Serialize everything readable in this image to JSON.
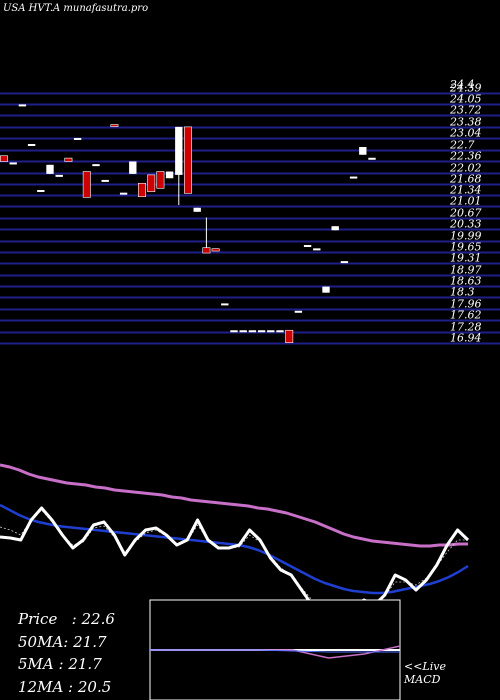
{
  "header": {
    "title": "USA HVT.A munafasutra.pro"
  },
  "legend": {
    "price_label": "Price",
    "price_value": "22.6",
    "ma50_label": "50MA",
    "ma50_value": "21.7",
    "ma5_label": "5MA",
    "ma5_value": "21.7",
    "ma12_label": "12MA",
    "ma12_value": "20.5"
  },
  "macd": {
    "live_label": "<<Live",
    "macd_label": "MACD"
  },
  "colors": {
    "background": "#000000",
    "grid": "#1f1f8c",
    "up_candle": "#ffffff",
    "down_candle": "#cc0000",
    "ma_slow": "#c86fc8",
    "ma_mid": "#1f3fd0",
    "price_line": "#ffffff"
  },
  "chart_data": {
    "type": "candlestick",
    "y_ticks": [
      "24.39",
      "24.05",
      "23.72",
      "23.38",
      "23.04",
      "22.7",
      "22.36",
      "22.02",
      "21.68",
      "21.34",
      "21.01",
      "20.67",
      "20.33",
      "19.99",
      "19.65",
      "19.31",
      "18.97",
      "18.63",
      "18.3",
      "17.96",
      "17.62",
      "17.28",
      "16.94"
    ],
    "y_tick_top_label": "24.4",
    "ylim": [
      16.94,
      24.39
    ],
    "candles": [
      {
        "o": 22.52,
        "c": 22.35,
        "h": 22.52,
        "l": 22.35,
        "dir": "down-flat"
      },
      {
        "o": 22.32,
        "c": 22.32,
        "h": 22.32,
        "l": 22.32,
        "dir": "up"
      },
      {
        "o": 24.05,
        "c": 24.05,
        "h": 24.05,
        "l": 24.05,
        "dir": "up"
      },
      {
        "o": 22.87,
        "c": 22.87,
        "h": 22.87,
        "l": 22.87,
        "dir": "up"
      },
      {
        "o": 21.5,
        "c": 21.5,
        "h": 21.5,
        "l": 21.5,
        "dir": "up"
      },
      {
        "o": 22.25,
        "c": 21.98,
        "h": 22.25,
        "l": 21.98,
        "dir": "up"
      },
      {
        "o": 21.95,
        "c": 21.95,
        "h": 21.95,
        "l": 21.95,
        "dir": "up"
      },
      {
        "o": 22.45,
        "c": 22.35,
        "h": 22.45,
        "l": 22.35,
        "dir": "down"
      },
      {
        "o": 23.05,
        "c": 23.05,
        "h": 23.05,
        "l": 23.05,
        "dir": "up"
      },
      {
        "o": 22.05,
        "c": 21.28,
        "h": 22.05,
        "l": 21.28,
        "dir": "down"
      },
      {
        "o": 22.27,
        "c": 22.27,
        "h": 22.27,
        "l": 22.27,
        "dir": "up"
      },
      {
        "o": 21.8,
        "c": 21.8,
        "h": 21.8,
        "l": 21.8,
        "dir": "up"
      },
      {
        "o": 23.45,
        "c": 23.4,
        "h": 23.45,
        "l": 23.4,
        "dir": "down"
      },
      {
        "o": 21.42,
        "c": 21.42,
        "h": 21.42,
        "l": 21.42,
        "dir": "up"
      },
      {
        "o": 21.98,
        "c": 22.35,
        "h": 22.35,
        "l": 21.98,
        "dir": "up"
      },
      {
        "o": 21.7,
        "c": 21.3,
        "h": 21.7,
        "l": 21.3,
        "dir": "down"
      },
      {
        "o": 21.95,
        "c": 21.45,
        "h": 21.95,
        "l": 21.45,
        "dir": "down"
      },
      {
        "o": 22.05,
        "c": 21.55,
        "h": 22.05,
        "l": 21.55,
        "dir": "down"
      },
      {
        "o": 21.85,
        "c": 22.05,
        "h": 22.05,
        "l": 21.85,
        "dir": "up"
      },
      {
        "o": 21.95,
        "c": 23.38,
        "h": 23.38,
        "l": 21.05,
        "dir": "up"
      },
      {
        "o": 23.38,
        "c": 21.4,
        "h": 23.38,
        "l": 21.4,
        "dir": "down"
      },
      {
        "o": 20.85,
        "c": 20.97,
        "h": 20.97,
        "l": 20.85,
        "dir": "up"
      },
      {
        "o": 19.78,
        "c": 19.62,
        "h": 20.68,
        "l": 19.62,
        "dir": "down"
      },
      {
        "o": 19.75,
        "c": 19.68,
        "h": 19.75,
        "l": 19.68,
        "dir": "down"
      },
      {
        "o": 18.12,
        "c": 18.12,
        "h": 18.12,
        "l": 18.12,
        "dir": "up"
      },
      {
        "o": 17.32,
        "c": 17.32,
        "h": 17.32,
        "l": 17.32,
        "dir": "up"
      },
      {
        "o": 17.32,
        "c": 17.32,
        "h": 17.32,
        "l": 17.32,
        "dir": "up"
      },
      {
        "o": 17.32,
        "c": 17.32,
        "h": 17.32,
        "l": 17.32,
        "dir": "up"
      },
      {
        "o": 17.32,
        "c": 17.32,
        "h": 17.32,
        "l": 17.32,
        "dir": "up"
      },
      {
        "o": 17.32,
        "c": 17.32,
        "h": 17.32,
        "l": 17.32,
        "dir": "up"
      },
      {
        "o": 17.32,
        "c": 17.32,
        "h": 17.32,
        "l": 17.32,
        "dir": "up"
      },
      {
        "o": 17.32,
        "c": 16.95,
        "h": 17.32,
        "l": 16.95,
        "dir": "down"
      },
      {
        "o": 17.9,
        "c": 17.9,
        "h": 17.9,
        "l": 17.9,
        "dir": "up"
      },
      {
        "o": 19.86,
        "c": 19.86,
        "h": 19.86,
        "l": 19.86,
        "dir": "up"
      },
      {
        "o": 19.76,
        "c": 19.76,
        "h": 19.76,
        "l": 19.76,
        "dir": "up"
      },
      {
        "o": 18.44,
        "c": 18.62,
        "h": 18.62,
        "l": 18.44,
        "dir": "up"
      },
      {
        "o": 20.3,
        "c": 20.42,
        "h": 20.42,
        "l": 20.3,
        "dir": "up"
      },
      {
        "o": 19.38,
        "c": 19.38,
        "h": 19.38,
        "l": 19.38,
        "dir": "up"
      },
      {
        "o": 21.9,
        "c": 21.9,
        "h": 21.9,
        "l": 21.9,
        "dir": "up"
      },
      {
        "o": 22.55,
        "c": 22.78,
        "h": 22.78,
        "l": 22.55,
        "dir": "up"
      },
      {
        "o": 22.46,
        "c": 22.46,
        "h": 22.46,
        "l": 22.46,
        "dir": "up"
      }
    ],
    "indicator_lines": {
      "ma_slow": [
        465,
        467,
        470,
        474,
        477,
        479,
        481,
        483,
        484,
        485,
        487,
        488,
        490,
        491,
        492,
        493,
        494,
        495,
        497,
        498,
        500,
        501,
        502,
        503,
        504,
        505,
        506,
        508,
        509,
        511,
        513,
        516,
        519,
        522,
        526,
        530,
        534,
        537,
        539,
        541,
        542,
        543,
        544,
        545,
        546,
        546,
        545,
        545,
        544,
        544
      ],
      "ma_mid": [
        505,
        510,
        515,
        519,
        522,
        524,
        526,
        527,
        528,
        529,
        530,
        531,
        532,
        533,
        534,
        535,
        536,
        537,
        538,
        539,
        540,
        541,
        542,
        543,
        544,
        545,
        547,
        550,
        554,
        559,
        564,
        569,
        574,
        579,
        583,
        586,
        589,
        591,
        592,
        593,
        593,
        592,
        590,
        588,
        586,
        584,
        581,
        577,
        572,
        566
      ],
      "price": [
        537,
        538,
        540,
        520,
        508,
        520,
        535,
        548,
        540,
        525,
        522,
        535,
        555,
        540,
        530,
        528,
        535,
        545,
        540,
        520,
        540,
        548,
        548,
        545,
        530,
        540,
        558,
        570,
        575,
        590,
        605,
        610,
        610,
        610,
        608,
        600,
        605,
        595,
        575,
        580,
        590,
        580,
        565,
        545,
        530,
        540
      ],
      "signal": [
        527,
        530,
        535,
        520,
        510,
        522,
        535,
        545,
        542,
        528,
        526,
        537,
        552,
        542,
        533,
        530,
        536,
        545,
        541,
        525,
        540,
        547,
        548,
        547,
        535,
        542,
        556,
        568,
        575,
        588,
        600,
        606,
        608,
        609,
        607,
        601,
        603,
        596,
        582,
        582,
        585,
        578,
        566,
        552,
        540,
        540
      ]
    },
    "macd_lines": {
      "zero": [
        650,
        650,
        650,
        650,
        650,
        650,
        650,
        650
      ],
      "histogram": [
        650,
        650,
        650,
        650,
        651,
        652,
        652,
        652
      ],
      "signal": [
        650,
        650,
        650,
        650,
        650,
        658,
        654,
        646
      ]
    }
  }
}
